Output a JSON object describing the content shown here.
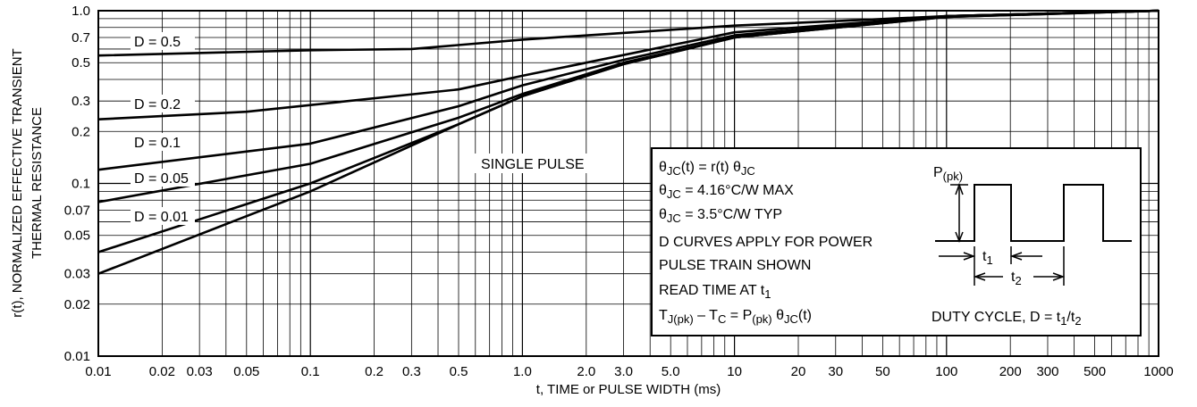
{
  "chart_data": {
    "type": "line",
    "title": "",
    "xlabel": "t, TIME or PULSE WIDTH (ms)",
    "ylabel_line1": "r(t), NORMALIZED EFFECTIVE TRANSIENT",
    "ylabel_line2": "THERMAL RESISTANCE",
    "x_scale": "log",
    "y_scale": "log",
    "xlim": [
      0.01,
      1000
    ],
    "ylim": [
      0.01,
      1.0
    ],
    "grid": true,
    "x_ticks": [
      {
        "v": 0.01,
        "label": "0.01"
      },
      {
        "v": 0.02,
        "label": "0.02"
      },
      {
        "v": 0.03,
        "label": "0.03"
      },
      {
        "v": 0.05,
        "label": "0.05"
      },
      {
        "v": 0.1,
        "label": "0.1"
      },
      {
        "v": 0.2,
        "label": "0.2"
      },
      {
        "v": 0.3,
        "label": "0.3"
      },
      {
        "v": 0.5,
        "label": "0.5"
      },
      {
        "v": 1,
        "label": "1.0"
      },
      {
        "v": 2,
        "label": "2.0"
      },
      {
        "v": 3,
        "label": "3.0"
      },
      {
        "v": 5,
        "label": "5.0"
      },
      {
        "v": 10,
        "label": "10"
      },
      {
        "v": 20,
        "label": "20"
      },
      {
        "v": 30,
        "label": "30"
      },
      {
        "v": 50,
        "label": "50"
      },
      {
        "v": 100,
        "label": "100"
      },
      {
        "v": 200,
        "label": "200"
      },
      {
        "v": 300,
        "label": "300"
      },
      {
        "v": 500,
        "label": "500"
      },
      {
        "v": 1000,
        "label": "1000"
      }
    ],
    "y_ticks": [
      {
        "v": 0.01,
        "label": "0.01"
      },
      {
        "v": 0.02,
        "label": "0.02"
      },
      {
        "v": 0.03,
        "label": "0.03"
      },
      {
        "v": 0.05,
        "label": "0.05"
      },
      {
        "v": 0.07,
        "label": "0.07"
      },
      {
        "v": 0.1,
        "label": "0.1"
      },
      {
        "v": 0.2,
        "label": "0.2"
      },
      {
        "v": 0.3,
        "label": "0.3"
      },
      {
        "v": 0.5,
        "label": "0.5"
      },
      {
        "v": 0.7,
        "label": "0.7"
      },
      {
        "v": 1.0,
        "label": "1.0"
      }
    ],
    "series": [
      {
        "name": "D = 0.5",
        "x": [
          0.01,
          0.1,
          0.3,
          1,
          10,
          100,
          1000
        ],
        "y": [
          0.55,
          0.59,
          0.6,
          0.68,
          0.82,
          0.93,
          1.0
        ]
      },
      {
        "name": "D = 0.2",
        "x": [
          0.01,
          0.05,
          0.5,
          1,
          10,
          100,
          1000
        ],
        "y": [
          0.235,
          0.26,
          0.35,
          0.42,
          0.75,
          0.93,
          1.0
        ]
      },
      {
        "name": "D = 0.1",
        "x": [
          0.01,
          0.1,
          0.5,
          1,
          3,
          10,
          100,
          1000
        ],
        "y": [
          0.12,
          0.17,
          0.28,
          0.37,
          0.52,
          0.72,
          0.93,
          1.0
        ]
      },
      {
        "name": "D = 0.05",
        "x": [
          0.01,
          0.1,
          0.5,
          1,
          3,
          10,
          100,
          1000
        ],
        "y": [
          0.078,
          0.13,
          0.24,
          0.33,
          0.5,
          0.7,
          0.93,
          1.0
        ]
      },
      {
        "name": "D = 0.01",
        "x": [
          0.01,
          0.1,
          0.5,
          1,
          3,
          10,
          100,
          1000
        ],
        "y": [
          0.04,
          0.1,
          0.22,
          0.32,
          0.49,
          0.7,
          0.92,
          1.0
        ]
      },
      {
        "name": "SINGLE PULSE",
        "x": [
          0.01,
          0.1,
          0.5,
          1,
          3,
          10,
          100,
          1000
        ],
        "y": [
          0.03,
          0.09,
          0.22,
          0.32,
          0.49,
          0.7,
          0.92,
          1.0
        ]
      }
    ],
    "annotations": {
      "eq1": {
        "a": "θ",
        "b": "JC",
        "c": "(t) = r(t) θ",
        "d": "JC"
      },
      "eq2": {
        "a": "θ",
        "b": "JC",
        "c": " = 4.16°C/W MAX"
      },
      "eq3": {
        "a": "θ",
        "b": "JC",
        "c": " = 3.5°C/W TYP"
      },
      "note1": "D CURVES APPLY FOR POWER",
      "note2": "PULSE TRAIN SHOWN",
      "read_time": {
        "a": "READ TIME AT t",
        "b": "1"
      },
      "eq4": {
        "a": "T",
        "b": "J(pk)",
        "c": " – T",
        "d": "C",
        "e": " = P",
        "f": "(pk)",
        "g": " θ",
        "h": "JC",
        "i": "(t)"
      },
      "ppk": {
        "a": "P",
        "b": "(pk)"
      },
      "t1": {
        "a": "t",
        "b": "1"
      },
      "t2": {
        "a": "t",
        "b": "2"
      },
      "duty": {
        "a": "DUTY CYCLE, D = t",
        "b": "1",
        "c": "/t",
        "d": "2"
      }
    }
  }
}
